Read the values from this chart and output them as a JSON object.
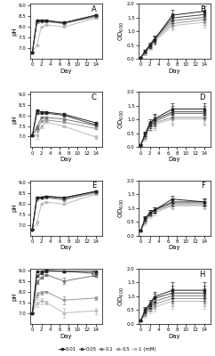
{
  "days": [
    0,
    1,
    2,
    3,
    7,
    14
  ],
  "panel_labels": [
    "A",
    "B",
    "C",
    "D",
    "E",
    "F",
    "G",
    "H"
  ],
  "legend_labels": [
    "0.01",
    "0.05",
    "0.1",
    "0.5",
    "1 (mM)"
  ],
  "line_colors": [
    "#222222",
    "#444444",
    "#777777",
    "#999999",
    "#bbbbbb"
  ],
  "marker": "s",
  "markersize": 2.0,
  "linewidth": 0.7,
  "pH_A": [
    [
      6.8,
      8.3,
      8.3,
      8.3,
      8.2,
      8.55
    ],
    [
      6.8,
      8.3,
      8.3,
      8.3,
      8.2,
      8.55
    ],
    [
      6.8,
      8.25,
      8.28,
      8.28,
      8.18,
      8.5
    ],
    [
      6.8,
      8.22,
      8.25,
      8.25,
      8.15,
      8.48
    ],
    [
      6.8,
      7.15,
      8.0,
      8.1,
      8.0,
      8.42
    ]
  ],
  "pH_A_err": [
    [
      0.02,
      0.03,
      0.03,
      0.03,
      0.03,
      0.04
    ],
    [
      0.02,
      0.03,
      0.03,
      0.03,
      0.03,
      0.04
    ],
    [
      0.02,
      0.03,
      0.03,
      0.03,
      0.03,
      0.04
    ],
    [
      0.02,
      0.03,
      0.03,
      0.03,
      0.03,
      0.04
    ],
    [
      0.02,
      0.08,
      0.04,
      0.03,
      0.03,
      0.04
    ]
  ],
  "OD_B": [
    [
      0.05,
      0.28,
      0.48,
      0.68,
      1.58,
      1.72
    ],
    [
      0.05,
      0.27,
      0.5,
      0.72,
      1.48,
      1.6
    ],
    [
      0.05,
      0.23,
      0.5,
      0.72,
      1.38,
      1.5
    ],
    [
      0.05,
      0.2,
      0.45,
      0.68,
      1.28,
      1.42
    ],
    [
      0.05,
      0.18,
      0.42,
      0.62,
      1.2,
      1.32
    ]
  ],
  "OD_B_err": [
    [
      0.01,
      0.04,
      0.08,
      0.12,
      0.18,
      0.18
    ],
    [
      0.01,
      0.04,
      0.08,
      0.12,
      0.18,
      0.18
    ],
    [
      0.01,
      0.04,
      0.08,
      0.12,
      0.18,
      0.18
    ],
    [
      0.01,
      0.04,
      0.08,
      0.12,
      0.18,
      0.18
    ],
    [
      0.01,
      0.04,
      0.08,
      0.12,
      0.18,
      0.18
    ]
  ],
  "pH_C": [
    [
      7.05,
      8.25,
      8.15,
      8.15,
      8.05,
      7.65
    ],
    [
      7.05,
      8.1,
      8.1,
      8.1,
      8.0,
      7.55
    ],
    [
      7.05,
      7.45,
      7.9,
      7.9,
      7.82,
      7.52
    ],
    [
      7.05,
      7.35,
      7.72,
      7.78,
      7.68,
      7.38
    ],
    [
      7.05,
      7.08,
      7.48,
      7.68,
      7.48,
      6.98
    ]
  ],
  "pH_C_err": [
    [
      0.03,
      0.04,
      0.04,
      0.04,
      0.04,
      0.04
    ],
    [
      0.03,
      0.04,
      0.04,
      0.04,
      0.04,
      0.04
    ],
    [
      0.03,
      0.08,
      0.04,
      0.04,
      0.04,
      0.04
    ],
    [
      0.03,
      0.12,
      0.04,
      0.04,
      0.04,
      0.04
    ],
    [
      0.03,
      0.18,
      0.09,
      0.04,
      0.04,
      0.09
    ]
  ],
  "OD_D": [
    [
      0.08,
      0.48,
      0.88,
      1.02,
      1.38,
      1.38
    ],
    [
      0.08,
      0.48,
      0.82,
      0.98,
      1.28,
      1.28
    ],
    [
      0.08,
      0.42,
      0.78,
      0.92,
      1.22,
      1.22
    ],
    [
      0.08,
      0.38,
      0.78,
      0.88,
      1.08,
      1.08
    ],
    [
      0.08,
      0.33,
      0.72,
      0.82,
      1.02,
      1.02
    ]
  ],
  "OD_D_err": [
    [
      0.02,
      0.09,
      0.14,
      0.18,
      0.22,
      0.22
    ],
    [
      0.02,
      0.09,
      0.14,
      0.18,
      0.22,
      0.22
    ],
    [
      0.02,
      0.09,
      0.14,
      0.18,
      0.22,
      0.22
    ],
    [
      0.02,
      0.09,
      0.14,
      0.18,
      0.22,
      0.22
    ],
    [
      0.02,
      0.09,
      0.14,
      0.18,
      0.22,
      0.22
    ]
  ],
  "pH_E": [
    [
      6.8,
      8.3,
      8.3,
      8.35,
      8.28,
      8.58
    ],
    [
      6.8,
      8.3,
      8.3,
      8.35,
      8.28,
      8.58
    ],
    [
      6.8,
      8.28,
      8.3,
      8.32,
      8.22,
      8.55
    ],
    [
      6.8,
      8.22,
      8.28,
      8.28,
      8.18,
      8.5
    ],
    [
      6.8,
      7.1,
      8.0,
      8.08,
      7.98,
      8.44
    ]
  ],
  "pH_E_err": [
    [
      0.02,
      0.03,
      0.03,
      0.03,
      0.03,
      0.04
    ],
    [
      0.02,
      0.03,
      0.03,
      0.03,
      0.03,
      0.04
    ],
    [
      0.02,
      0.03,
      0.03,
      0.03,
      0.03,
      0.04
    ],
    [
      0.02,
      0.03,
      0.03,
      0.03,
      0.03,
      0.04
    ],
    [
      0.02,
      0.1,
      0.04,
      0.03,
      0.03,
      0.04
    ]
  ],
  "OD_F": [
    [
      0.18,
      0.62,
      0.82,
      0.92,
      1.32,
      1.22
    ],
    [
      0.18,
      0.62,
      0.82,
      0.92,
      1.22,
      1.22
    ],
    [
      0.18,
      0.58,
      0.82,
      0.92,
      1.18,
      1.18
    ],
    [
      0.18,
      0.52,
      0.78,
      0.88,
      1.12,
      1.12
    ],
    [
      0.18,
      0.48,
      0.72,
      0.82,
      1.08,
      1.08
    ]
  ],
  "OD_F_err": [
    [
      0.02,
      0.09,
      0.09,
      0.09,
      0.13,
      0.13
    ],
    [
      0.02,
      0.09,
      0.09,
      0.09,
      0.13,
      0.13
    ],
    [
      0.02,
      0.09,
      0.09,
      0.09,
      0.13,
      0.13
    ],
    [
      0.02,
      0.09,
      0.09,
      0.09,
      0.13,
      0.13
    ],
    [
      0.02,
      0.09,
      0.09,
      0.09,
      0.13,
      0.13
    ]
  ],
  "pH_G": [
    [
      7.02,
      8.98,
      8.98,
      9.02,
      8.98,
      8.98
    ],
    [
      7.02,
      8.78,
      8.88,
      8.98,
      8.98,
      8.88
    ],
    [
      7.02,
      8.48,
      8.68,
      8.82,
      8.52,
      8.78
    ],
    [
      7.02,
      7.88,
      7.98,
      8.02,
      7.62,
      7.72
    ],
    [
      7.02,
      7.48,
      7.58,
      7.52,
      7.02,
      7.12
    ]
  ],
  "pH_G_err": [
    [
      0.03,
      0.04,
      0.04,
      0.04,
      0.04,
      0.04
    ],
    [
      0.03,
      0.04,
      0.04,
      0.04,
      0.04,
      0.04
    ],
    [
      0.03,
      0.09,
      0.04,
      0.04,
      0.14,
      0.04
    ],
    [
      0.03,
      0.14,
      0.09,
      0.04,
      0.18,
      0.09
    ],
    [
      0.03,
      0.18,
      0.14,
      0.09,
      0.22,
      0.14
    ]
  ],
  "OD_H": [
    [
      0.12,
      0.52,
      0.72,
      0.98,
      1.22,
      1.22
    ],
    [
      0.12,
      0.48,
      0.68,
      0.92,
      1.12,
      1.12
    ],
    [
      0.12,
      0.42,
      0.62,
      0.82,
      1.02,
      1.02
    ],
    [
      0.12,
      0.38,
      0.58,
      0.72,
      0.92,
      0.92
    ],
    [
      0.12,
      0.32,
      0.52,
      0.62,
      0.82,
      0.82
    ]
  ],
  "OD_H_err": [
    [
      0.02,
      0.09,
      0.14,
      0.18,
      0.28,
      0.28
    ],
    [
      0.02,
      0.09,
      0.14,
      0.18,
      0.28,
      0.28
    ],
    [
      0.02,
      0.09,
      0.14,
      0.18,
      0.28,
      0.28
    ],
    [
      0.02,
      0.09,
      0.14,
      0.18,
      0.28,
      0.28
    ],
    [
      0.02,
      0.09,
      0.14,
      0.18,
      0.28,
      0.28
    ]
  ],
  "pH_ylim": [
    6.5,
    9.1
  ],
  "OD_ylim": [
    0.0,
    2.0
  ],
  "pH_yticks": [
    7.0,
    7.5,
    8.0,
    8.5,
    9.0
  ],
  "OD_yticks": [
    0.0,
    0.5,
    1.0,
    1.5,
    2.0
  ],
  "xticks": [
    0,
    2,
    4,
    6,
    8,
    10,
    12,
    14
  ],
  "xlabel": "Day",
  "pH_ylabel": "pH",
  "OD_ylabel": "OD600"
}
